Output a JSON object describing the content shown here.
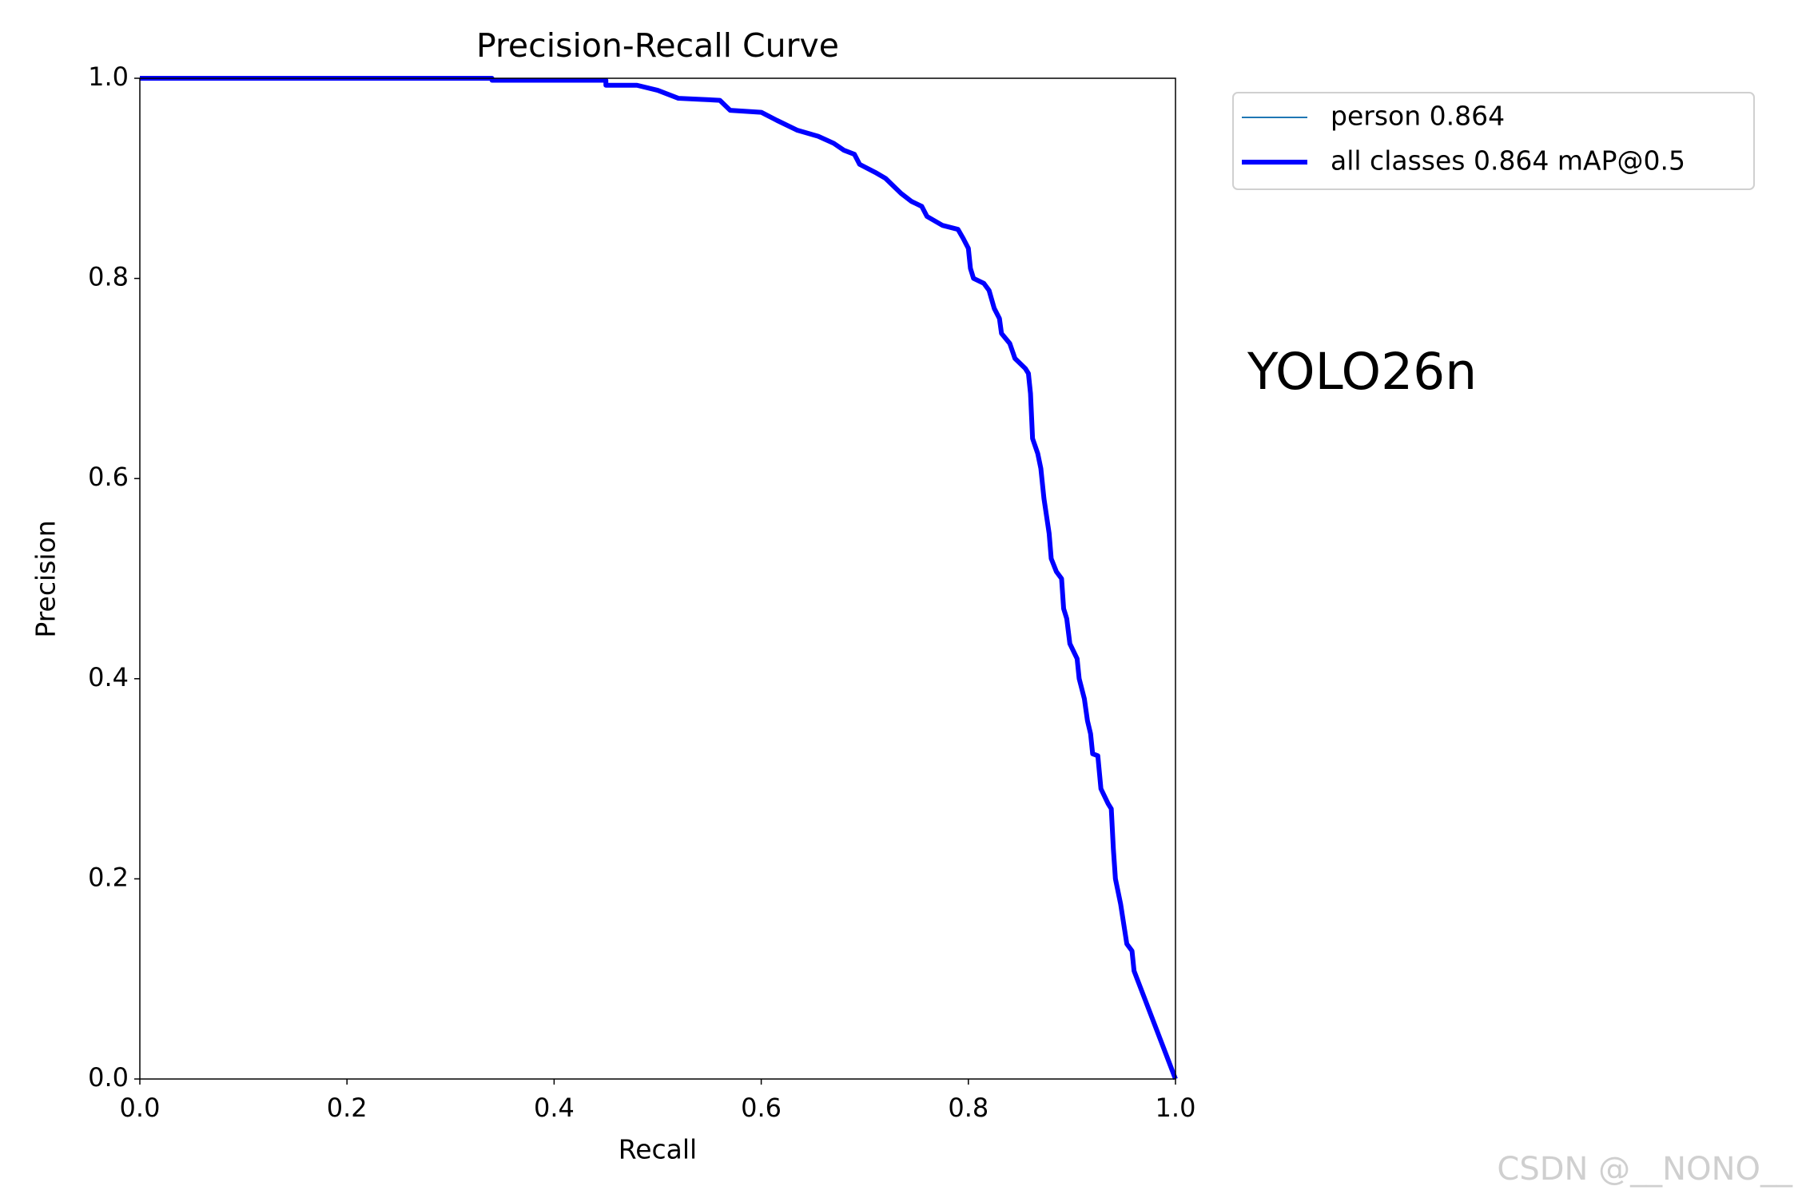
{
  "chart_data": {
    "type": "line",
    "title": "Precision-Recall Curve",
    "x_label": "Recall",
    "y_label": "Precision",
    "annotation": "YOLO26n",
    "watermark": "CSDN @__NONO__",
    "xlim": [
      0,
      1
    ],
    "ylim": [
      0,
      1
    ],
    "xticks": [
      {
        "value": 0,
        "label": "0.0"
      },
      0.2,
      0.4,
      0.6,
      0.8,
      {
        "value": 1,
        "label": "1.0"
      }
    ],
    "yticks": [
      {
        "value": 0,
        "label": "0.0"
      },
      0.2,
      0.4,
      0.6,
      0.8,
      {
        "value": 1,
        "label": "1.0"
      }
    ],
    "x": [
      0,
      0.34,
      0.34,
      0.45,
      0.45,
      0.48,
      0.5,
      0.52,
      0.56,
      0.57,
      0.6,
      0.615,
      0.635,
      0.655,
      0.67,
      0.68,
      0.69,
      0.695,
      0.71,
      0.72,
      0.735,
      0.745,
      0.755,
      0.76,
      0.775,
      0.79,
      0.795,
      0.8,
      0.802,
      0.805,
      0.815,
      0.82,
      0.825,
      0.83,
      0.832,
      0.84,
      0.845,
      0.855,
      0.858,
      0.86,
      0.862,
      0.867,
      0.87,
      0.873,
      0.878,
      0.88,
      0.885,
      0.89,
      0.892,
      0.895,
      0.898,
      0.905,
      0.907,
      0.912,
      0.915,
      0.918,
      0.92,
      0.925,
      0.928,
      0.935,
      0.938,
      0.94,
      0.942,
      0.947,
      0.95,
      0.953,
      0.958,
      0.96,
      1.0
    ],
    "series": [
      {
        "name": "person 0.864",
        "color": "#1f77b4",
        "values": [
          1.0,
          1.0,
          0.998,
          0.998,
          0.993,
          0.993,
          0.988,
          0.98,
          0.978,
          0.968,
          0.966,
          0.958,
          0.948,
          0.942,
          0.935,
          0.928,
          0.924,
          0.914,
          0.906,
          0.9,
          0.885,
          0.877,
          0.872,
          0.862,
          0.853,
          0.849,
          0.84,
          0.83,
          0.81,
          0.8,
          0.795,
          0.788,
          0.77,
          0.76,
          0.745,
          0.735,
          0.72,
          0.71,
          0.705,
          0.685,
          0.64,
          0.625,
          0.61,
          0.58,
          0.545,
          0.52,
          0.507,
          0.5,
          0.47,
          0.46,
          0.435,
          0.42,
          0.4,
          0.38,
          0.358,
          0.345,
          0.325,
          0.323,
          0.29,
          0.275,
          0.27,
          0.23,
          0.2,
          0.175,
          0.155,
          0.135,
          0.128,
          0.108,
          0.0
        ]
      },
      {
        "name": "all classes 0.864 mAP@0.5",
        "color": "#0000ff",
        "values": [
          1.0,
          1.0,
          0.998,
          0.998,
          0.993,
          0.993,
          0.988,
          0.98,
          0.978,
          0.968,
          0.966,
          0.958,
          0.948,
          0.942,
          0.935,
          0.928,
          0.924,
          0.914,
          0.906,
          0.9,
          0.885,
          0.877,
          0.872,
          0.862,
          0.853,
          0.849,
          0.84,
          0.83,
          0.81,
          0.8,
          0.795,
          0.788,
          0.77,
          0.76,
          0.745,
          0.735,
          0.72,
          0.71,
          0.705,
          0.685,
          0.64,
          0.625,
          0.61,
          0.58,
          0.545,
          0.52,
          0.507,
          0.5,
          0.47,
          0.46,
          0.435,
          0.42,
          0.4,
          0.38,
          0.358,
          0.345,
          0.325,
          0.323,
          0.29,
          0.275,
          0.27,
          0.23,
          0.2,
          0.175,
          0.155,
          0.135,
          0.128,
          0.108,
          0.0
        ]
      }
    ]
  }
}
